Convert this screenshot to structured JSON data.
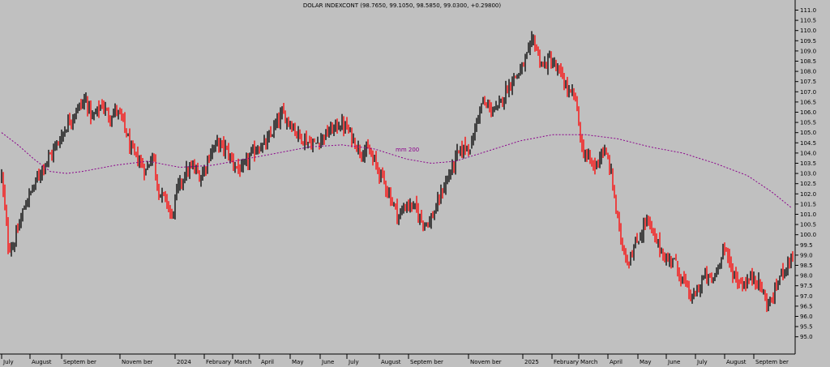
{
  "chart_data": {
    "type": "candlestick",
    "title": "DOLAR INDEXCONT (98.7650, 99.1050, 98.5850, 99.0300, +0.29800)",
    "ylim": [
      94.75,
      111.45
    ],
    "y_ticks": [
      "111.0",
      "110.5",
      "110.0",
      "109.5",
      "109.0",
      "108.5",
      "108.0",
      "107.5",
      "107.0",
      "106.5",
      "106.0",
      "105.5",
      "105.0",
      "104.5",
      "104.0",
      "103.5",
      "103.0",
      "102.5",
      "102.0",
      "101.5",
      "101.0",
      "100.5",
      "100.0",
      "99.5",
      "99.0",
      "98.5",
      "98.0",
      "97.5",
      "97.0",
      "96.5",
      "96.0",
      "95.5",
      "95.0"
    ],
    "x_ticks": [
      "July",
      "August",
      "Septem ber",
      "Novem ber",
      "2024",
      "February",
      "March",
      "April",
      "May",
      "June",
      "July",
      "August",
      "Septem ber",
      "Novem ber",
      "2025",
      "February",
      "March",
      "April",
      "May",
      "June",
      "July",
      "August",
      "Septem ber"
    ],
    "x_tick_index": [
      0,
      35,
      74,
      146,
      214,
      250,
      285,
      318,
      356,
      393,
      426,
      466,
      502,
      576,
      643,
      679,
      712,
      748,
      785,
      820,
      856,
      892,
      928
    ],
    "ma_label": "mm 200",
    "colors": {
      "up": "#000000",
      "down": "#ff0000",
      "ma": "#8b008b",
      "background": "#c0c0c0"
    },
    "close_anchors": [
      [
        0,
        102.9
      ],
      [
        8,
        99.5
      ],
      [
        14,
        99.4
      ],
      [
        22,
        100.5
      ],
      [
        30,
        101.6
      ],
      [
        40,
        102.4
      ],
      [
        50,
        103.3
      ],
      [
        62,
        104.0
      ],
      [
        72,
        104.7
      ],
      [
        82,
        105.5
      ],
      [
        94,
        106.2
      ],
      [
        104,
        106.6
      ],
      [
        112,
        105.7
      ],
      [
        124,
        106.4
      ],
      [
        132,
        105.8
      ],
      [
        142,
        106.1
      ],
      [
        150,
        105.5
      ],
      [
        160,
        104.1
      ],
      [
        170,
        103.6
      ],
      [
        178,
        103.1
      ],
      [
        186,
        104.0
      ],
      [
        194,
        102.1
      ],
      [
        204,
        101.6
      ],
      [
        210,
        100.8
      ],
      [
        216,
        102.1
      ],
      [
        226,
        103.0
      ],
      [
        236,
        103.3
      ],
      [
        246,
        102.8
      ],
      [
        256,
        103.9
      ],
      [
        266,
        104.5
      ],
      [
        276,
        104.2
      ],
      [
        286,
        103.5
      ],
      [
        296,
        103.1
      ],
      [
        306,
        103.8
      ],
      [
        316,
        104.3
      ],
      [
        326,
        104.4
      ],
      [
        336,
        105.2
      ],
      [
        346,
        105.9
      ],
      [
        356,
        105.5
      ],
      [
        366,
        104.9
      ],
      [
        376,
        104.6
      ],
      [
        386,
        104.4
      ],
      [
        396,
        104.8
      ],
      [
        406,
        105.1
      ],
      [
        416,
        105.4
      ],
      [
        424,
        105.3
      ],
      [
        432,
        104.8
      ],
      [
        442,
        104.1
      ],
      [
        452,
        104.1
      ],
      [
        462,
        103.4
      ],
      [
        472,
        102.6
      ],
      [
        480,
        101.8
      ],
      [
        490,
        100.9
      ],
      [
        500,
        101.5
      ],
      [
        510,
        101.3
      ],
      [
        518,
        100.7
      ],
      [
        528,
        100.6
      ],
      [
        536,
        101.3
      ],
      [
        544,
        102.2
      ],
      [
        552,
        102.9
      ],
      [
        562,
        103.9
      ],
      [
        572,
        104.3
      ],
      [
        580,
        104.4
      ],
      [
        586,
        105.6
      ],
      [
        592,
        106.4
      ],
      [
        602,
        106.2
      ],
      [
        612,
        106.1
      ],
      [
        620,
        106.9
      ],
      [
        630,
        107.6
      ],
      [
        640,
        108.0
      ],
      [
        648,
        108.7
      ],
      [
        656,
        109.6
      ],
      [
        662,
        108.8
      ],
      [
        668,
        108.2
      ],
      [
        676,
        108.6
      ],
      [
        684,
        108.1
      ],
      [
        692,
        107.7
      ],
      [
        700,
        106.9
      ],
      [
        708,
        106.7
      ],
      [
        716,
        104.2
      ],
      [
        724,
        103.7
      ],
      [
        732,
        103.3
      ],
      [
        740,
        104.1
      ],
      [
        748,
        103.7
      ],
      [
        754,
        102.5
      ],
      [
        760,
        100.6
      ],
      [
        766,
        99.5
      ],
      [
        772,
        98.7
      ],
      [
        780,
        99.3
      ],
      [
        788,
        100.0
      ],
      [
        796,
        100.8
      ],
      [
        804,
        99.9
      ],
      [
        812,
        99.4
      ],
      [
        820,
        98.7
      ],
      [
        828,
        98.9
      ],
      [
        836,
        98.1
      ],
      [
        844,
        97.5
      ],
      [
        852,
        96.8
      ],
      [
        860,
        97.4
      ],
      [
        868,
        98.0
      ],
      [
        876,
        97.7
      ],
      [
        884,
        98.4
      ],
      [
        890,
        99.5
      ],
      [
        896,
        98.8
      ],
      [
        904,
        98.0
      ],
      [
        912,
        97.6
      ],
      [
        920,
        97.7
      ],
      [
        928,
        98.0
      ],
      [
        936,
        97.5
      ],
      [
        944,
        96.6
      ],
      [
        952,
        96.9
      ],
      [
        958,
        97.8
      ],
      [
        966,
        98.4
      ],
      [
        976,
        99.0
      ]
    ],
    "ma_anchors": [
      [
        0,
        105.0
      ],
      [
        20,
        104.4
      ],
      [
        40,
        103.7
      ],
      [
        60,
        103.1
      ],
      [
        80,
        103.0
      ],
      [
        100,
        103.1
      ],
      [
        140,
        103.4
      ],
      [
        180,
        103.6
      ],
      [
        220,
        103.3
      ],
      [
        260,
        103.4
      ],
      [
        300,
        103.7
      ],
      [
        340,
        104.0
      ],
      [
        380,
        104.3
      ],
      [
        420,
        104.4
      ],
      [
        460,
        104.2
      ],
      [
        500,
        103.7
      ],
      [
        530,
        103.5
      ],
      [
        560,
        103.6
      ],
      [
        600,
        104.1
      ],
      [
        640,
        104.6
      ],
      [
        680,
        104.9
      ],
      [
        720,
        104.9
      ],
      [
        760,
        104.7
      ],
      [
        800,
        104.3
      ],
      [
        840,
        104.0
      ],
      [
        880,
        103.5
      ],
      [
        920,
        102.9
      ],
      [
        950,
        102.1
      ],
      [
        975,
        101.3
      ]
    ]
  }
}
